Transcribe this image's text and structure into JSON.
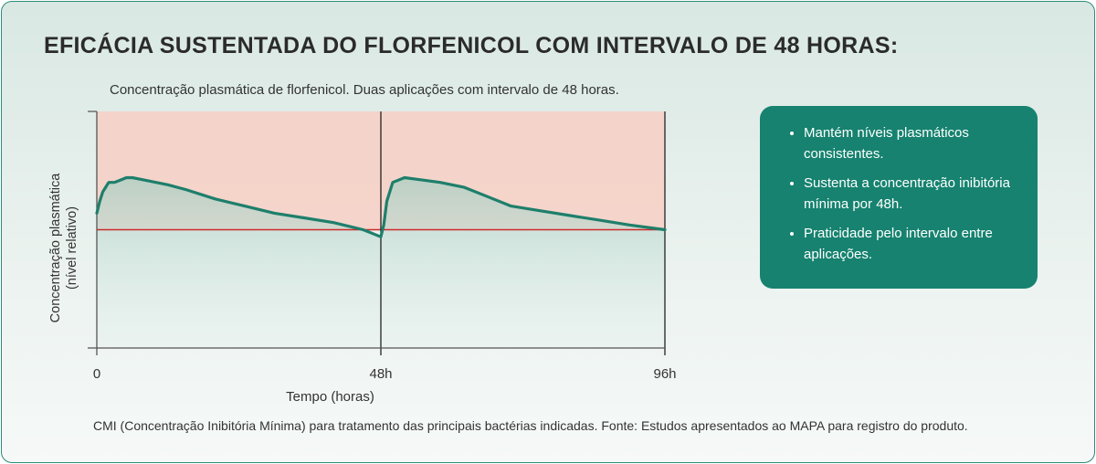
{
  "title": "EFICÁCIA SUSTENTADA DO FLORFENICOL COM INTERVALO DE 48 HORAS:",
  "subtitle": "Concentração plasmática de florfenicol. Duas aplicações com intervalo de 48 horas.",
  "footnote": "CMI (Concentração Inibitória Mínima) para tratamento das principais bactérias indicadas. Fonte: Estudos apresentados ao MAPA para registro do produto.",
  "info_box": {
    "bullets": [
      "Mantém níveis plasmáticos consistentes.",
      "Sustenta a concentração inibitória mínima por 48h.",
      "Praticidade pelo intervalo entre aplicações."
    ]
  },
  "colors": {
    "line": "#1e7f6b",
    "threshold": "#cc2a2a",
    "box": "#16826f",
    "upper_band": "#f7cfc4"
  },
  "chart_data": {
    "type": "line",
    "title": "",
    "xlabel": "Tempo (horas)",
    "ylabel_lines": [
      "Concentração plasmática",
      "(nível relativo)"
    ],
    "xlim": [
      0,
      96
    ],
    "ylim": [
      0,
      100
    ],
    "x_ticks": [
      {
        "value": 0,
        "label": "0"
      },
      {
        "value": 48,
        "label": "48h"
      },
      {
        "value": 96,
        "label": "96h"
      }
    ],
    "threshold": 50,
    "series": [
      {
        "x": [
          0,
          0.5,
          1,
          2,
          3,
          4,
          5,
          6,
          8,
          10,
          12,
          15,
          20,
          25,
          30,
          35,
          40,
          45,
          47,
          48,
          48.5,
          49,
          50,
          52,
          55,
          58,
          62,
          66,
          70,
          75,
          80,
          85,
          90,
          96
        ],
        "values": [
          57,
          62,
          66,
          70,
          70,
          71,
          72,
          72,
          71,
          70,
          69,
          67,
          63,
          60,
          57,
          55,
          53,
          50,
          48,
          47,
          52,
          62,
          70,
          72,
          71,
          70,
          68,
          64,
          60,
          58,
          56,
          54,
          52,
          50
        ]
      }
    ]
  }
}
